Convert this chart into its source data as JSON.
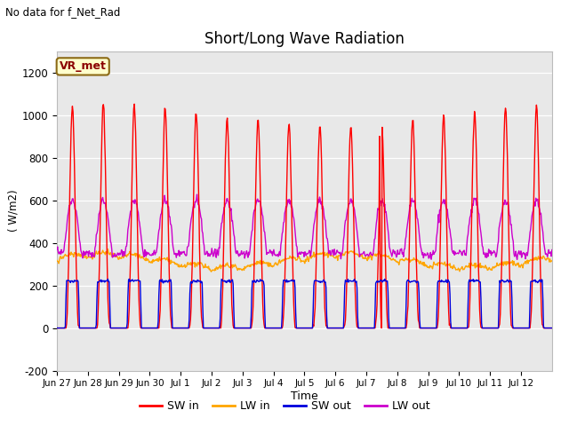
{
  "title": "Short/Long Wave Radiation",
  "xlabel": "Time",
  "ylabel": "( W/m2)",
  "top_left_text": "No data for f_Net_Rad",
  "legend_label": "VR_met",
  "ylim": [
    -200,
    1300
  ],
  "yticks": [
    -200,
    0,
    200,
    400,
    600,
    800,
    1000,
    1200
  ],
  "plot_bg_color": "#e8e8e8",
  "sw_in_color": "#ff0000",
  "lw_in_color": "#ffa500",
  "sw_out_color": "#0000dd",
  "lw_out_color": "#cc00cc",
  "line_width": 1.0,
  "tick_labels": [
    "Jun 27",
    "Jun 28",
    "Jun 29",
    "Jun 30",
    "Jul 1",
    "Jul 2",
    "Jul 3",
    "Jul 4",
    "Jul 5",
    "Jul 6",
    "Jul 7",
    "Jul 8",
    "Jul 9",
    "Jul 10",
    "Jul 11",
    "Jul 12"
  ],
  "num_days": 16
}
